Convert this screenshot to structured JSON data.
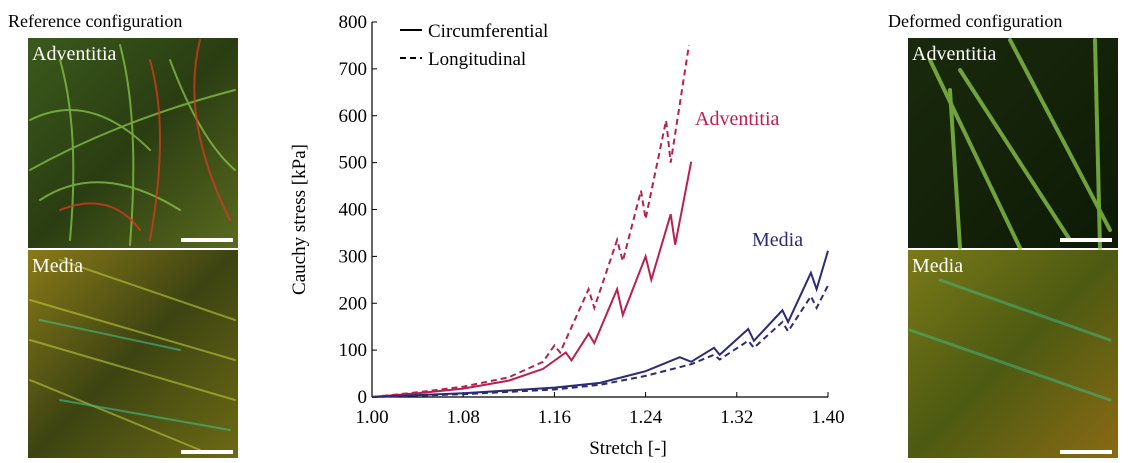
{
  "reference": {
    "title": "Reference configuration",
    "panels": [
      "Adventitia",
      "Media"
    ]
  },
  "deformed": {
    "title": "Deformed configuration",
    "panels": [
      "Adventitia",
      "Media"
    ]
  },
  "chart_data": {
    "type": "line",
    "xlabel": "Stretch [-]",
    "ylabel": "Cauchy stress [kPa]",
    "xlim": [
      1.0,
      1.4
    ],
    "ylim": [
      0,
      800
    ],
    "xticks": [
      {
        "value": 1.0,
        "label": "1.00"
      },
      1.08,
      1.16,
      1.24,
      1.32,
      {
        "value": 1.4,
        "label": "1.40"
      }
    ],
    "yticks": [
      0,
      100,
      200,
      300,
      400,
      500,
      600,
      700,
      800
    ],
    "legend": [
      {
        "label": "Circumferential",
        "style": "solid"
      },
      {
        "label": "Longitudinal",
        "style": "dashed"
      }
    ],
    "annotations": [
      {
        "text": "Adventitia",
        "color": "#b8204f"
      },
      {
        "text": "Media",
        "color": "#2b2b78"
      }
    ],
    "series": [
      {
        "style": "solid",
        "color": "#b8204f",
        "x": [
          1.0,
          1.04,
          1.08,
          1.12,
          1.15,
          1.17,
          1.175,
          1.19,
          1.195,
          1.215,
          1.22,
          1.24,
          1.245,
          1.262,
          1.266,
          1.28
        ],
        "values": [
          0,
          8,
          18,
          35,
          60,
          95,
          78,
          135,
          115,
          230,
          175,
          300,
          250,
          390,
          325,
          502
        ]
      },
      {
        "style": "dashed",
        "color": "#b8204f",
        "x": [
          1.0,
          1.04,
          1.08,
          1.12,
          1.15,
          1.16,
          1.165,
          1.19,
          1.195,
          1.215,
          1.22,
          1.236,
          1.24,
          1.258,
          1.262,
          1.278
        ],
        "values": [
          0,
          10,
          22,
          42,
          75,
          110,
          95,
          230,
          190,
          335,
          290,
          440,
          380,
          590,
          500,
          750
        ]
      },
      {
        "style": "solid",
        "color": "#2b2b78",
        "x": [
          1.0,
          1.08,
          1.16,
          1.2,
          1.24,
          1.27,
          1.28,
          1.3,
          1.305,
          1.33,
          1.335,
          1.36,
          1.365,
          1.385,
          1.39,
          1.4
        ],
        "values": [
          0,
          8,
          20,
          30,
          55,
          85,
          75,
          105,
          90,
          145,
          120,
          185,
          160,
          265,
          230,
          312
        ]
      },
      {
        "style": "dashed",
        "color": "#2b2b78",
        "x": [
          1.0,
          1.08,
          1.16,
          1.2,
          1.24,
          1.28,
          1.3,
          1.305,
          1.33,
          1.335,
          1.36,
          1.365,
          1.385,
          1.39,
          1.4
        ],
        "values": [
          0,
          6,
          16,
          26,
          45,
          70,
          90,
          80,
          120,
          105,
          160,
          140,
          215,
          190,
          238
        ]
      }
    ]
  }
}
